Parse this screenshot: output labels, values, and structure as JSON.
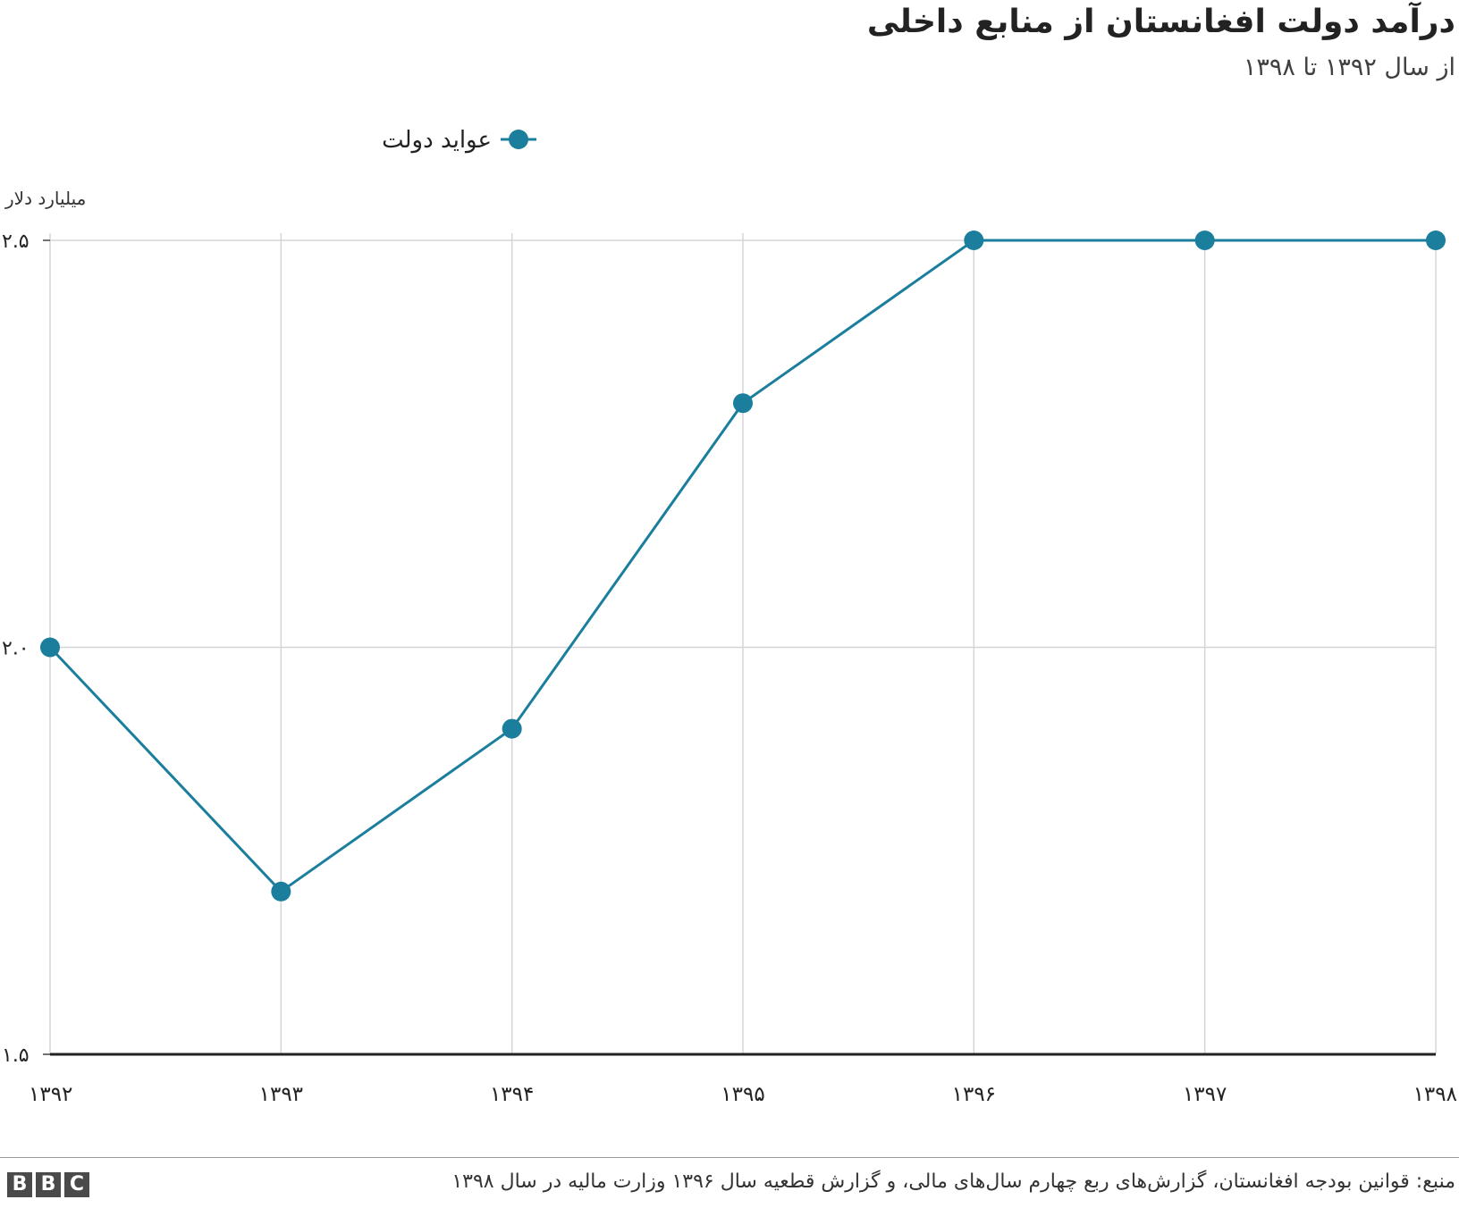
{
  "title": "درآمد دولت افغانستان از منابع داخلی",
  "subtitle": "از سال ۱۳۹۲ تا ۱۳۹۸",
  "source": "منبع: قوانین بودجه افغانستان، گزارش‌های ربع چهارم سال‌های مالی، و گزارش قطعیه سال ۱۳۹۶ وزارت مالیه در سال ۱۳۹۸",
  "brand": {
    "letters": [
      "B",
      "B",
      "C"
    ]
  },
  "colors": {
    "series": "#1a7e9c",
    "grid": "#d5d5d5",
    "axis": "#222222"
  },
  "chart_data": {
    "type": "line",
    "title": "درآمد دولت افغانستان از منابع داخلی",
    "subtitle": "از سال ۱۳۹۲ تا ۱۳۹۸",
    "ylabel": "میلیارد دلار",
    "xlabel": "",
    "categories": [
      "۱۳۹۲",
      "۱۳۹۳",
      "۱۳۹۴",
      "۱۳۹۵",
      "۱۳۹۶",
      "۱۳۹۷",
      "۱۳۹۸"
    ],
    "series": [
      {
        "name": "عواید دولت",
        "values": [
          2.0,
          1.7,
          1.9,
          2.3,
          2.5,
          2.5,
          2.5
        ]
      }
    ],
    "ylim": [
      1.5,
      2.5
    ],
    "yticks": [
      {
        "value": 1.5,
        "label": "۱.۵"
      },
      {
        "value": 2.0,
        "label": "۲.۰"
      },
      {
        "value": 2.5,
        "label": "۲.۵"
      }
    ],
    "grid": true,
    "legend": "top-left"
  }
}
